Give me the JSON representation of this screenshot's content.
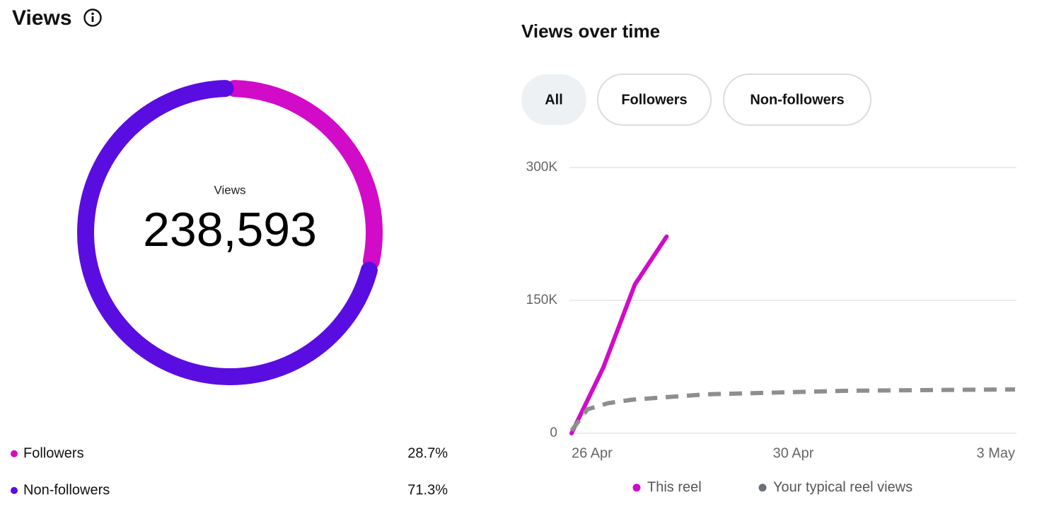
{
  "header": {
    "title": "Views"
  },
  "chart_data": [
    {
      "type": "donut",
      "center_label": "Views",
      "total": 238593,
      "total_label": "238,593",
      "categories": [
        "Followers",
        "Non-followers"
      ],
      "values": [
        28.7,
        71.3
      ],
      "value_labels": [
        "28.7%",
        "71.3%"
      ],
      "colors": [
        "#d10bc8",
        "#5a0de0"
      ]
    },
    {
      "type": "line",
      "title": "Views over time",
      "filters": [
        "All",
        "Followers",
        "Non-followers"
      ],
      "series": [
        {
          "name": "This reel",
          "color": "#d10bc8",
          "dashed": false,
          "x": [
            0,
            0.5,
            1,
            1.5
          ],
          "values": [
            0,
            74000,
            168000,
            222000
          ]
        },
        {
          "name": "Your typical reel views",
          "color": "#8e8e8e",
          "legend_color": "#6b6f76",
          "dashed": true,
          "x": [
            0,
            0.25,
            0.58,
            0.97,
            2.14,
            4.37,
            7
          ],
          "values": [
            3000,
            27000,
            34000,
            38000,
            44000,
            48000,
            49500
          ]
        }
      ],
      "xlim": [
        0,
        7
      ],
      "xticks": [
        {
          "value": 0,
          "label": "26 Apr"
        },
        {
          "value": 3.5,
          "label": "30 Apr"
        },
        {
          "value": 7,
          "label": "3 May"
        }
      ],
      "ylim": [
        0,
        300000
      ],
      "yticks": [
        0,
        {
          "value": 150000,
          "label": "150K"
        },
        {
          "value": 300000,
          "label": "300K"
        }
      ],
      "grid": true
    }
  ]
}
